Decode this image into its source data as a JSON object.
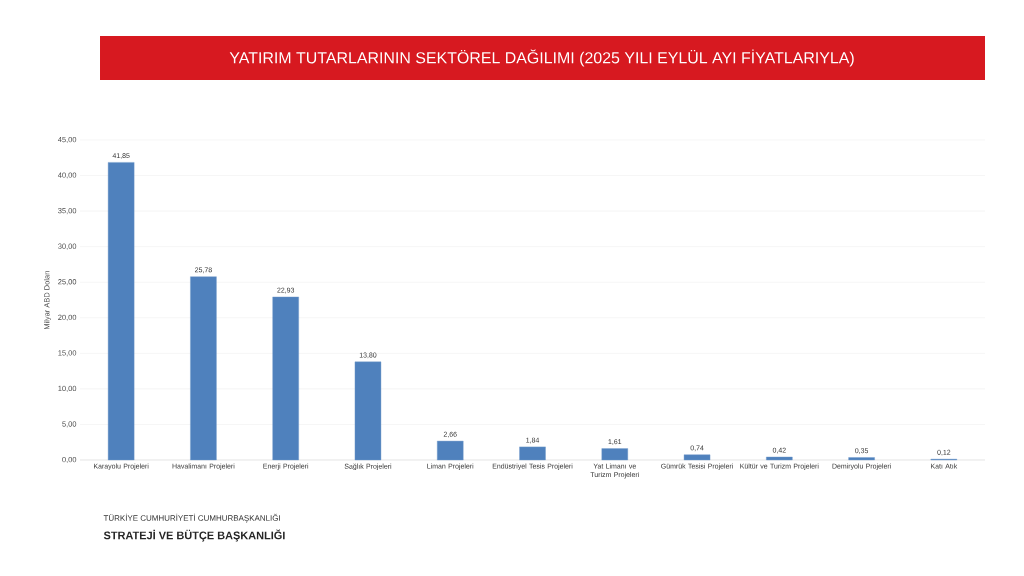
{
  "chart_data": {
    "type": "bar",
    "title": "YATIRIM TUTARLARININ SEKTÖREL DAĞILIMI (2025 YILI  EYLÜL AYI FİYATLARIYLA)",
    "ylabel": "Milyar ABD Doları",
    "categories": [
      "Karayolu Projeleri",
      "Havalimanı Projeleri",
      "Enerji Projeleri",
      "Sağlık Projeleri",
      "Liman Projeleri",
      "Endüstriyel Tesis Projeleri",
      "Yat Limanı ve Turizm Projeleri",
      "Gümrük Tesisi Projeleri",
      "Kültür ve Turizm Projeleri",
      "Demiryolu Projeleri",
      "Katı Atık"
    ],
    "values": [
      41.85,
      25.78,
      22.93,
      13.8,
      2.66,
      1.84,
      1.61,
      0.74,
      0.42,
      0.35,
      0.12
    ],
    "value_labels": [
      "41,85",
      "25,78",
      "22,93",
      "13,80",
      "2,66",
      "1,84",
      "1,61",
      "0,74",
      "0,42",
      "0,35",
      "0,12"
    ],
    "color": "#4f81bd",
    "ylim": [
      0,
      45
    ],
    "yticks": [
      {
        "value": 0,
        "label": "0,00"
      },
      {
        "value": 5,
        "label": "5,00"
      },
      {
        "value": 10,
        "label": "10,00"
      },
      {
        "value": 15,
        "label": "15,00"
      },
      {
        "value": 20,
        "label": "20,00"
      },
      {
        "value": 25,
        "label": "25,00"
      },
      {
        "value": 30,
        "label": "30,00"
      },
      {
        "value": 35,
        "label": "35,00"
      },
      {
        "value": 40,
        "label": "40,00"
      },
      {
        "value": 45,
        "label": "45,00"
      }
    ],
    "grid": "y",
    "annotations": [
      "TÜRKİYE CUMHURİYETİ CUMHURBAŞKANLIĞI",
      "STRATEJİ VE BÜTÇE BAŞKANLIĞI"
    ]
  }
}
